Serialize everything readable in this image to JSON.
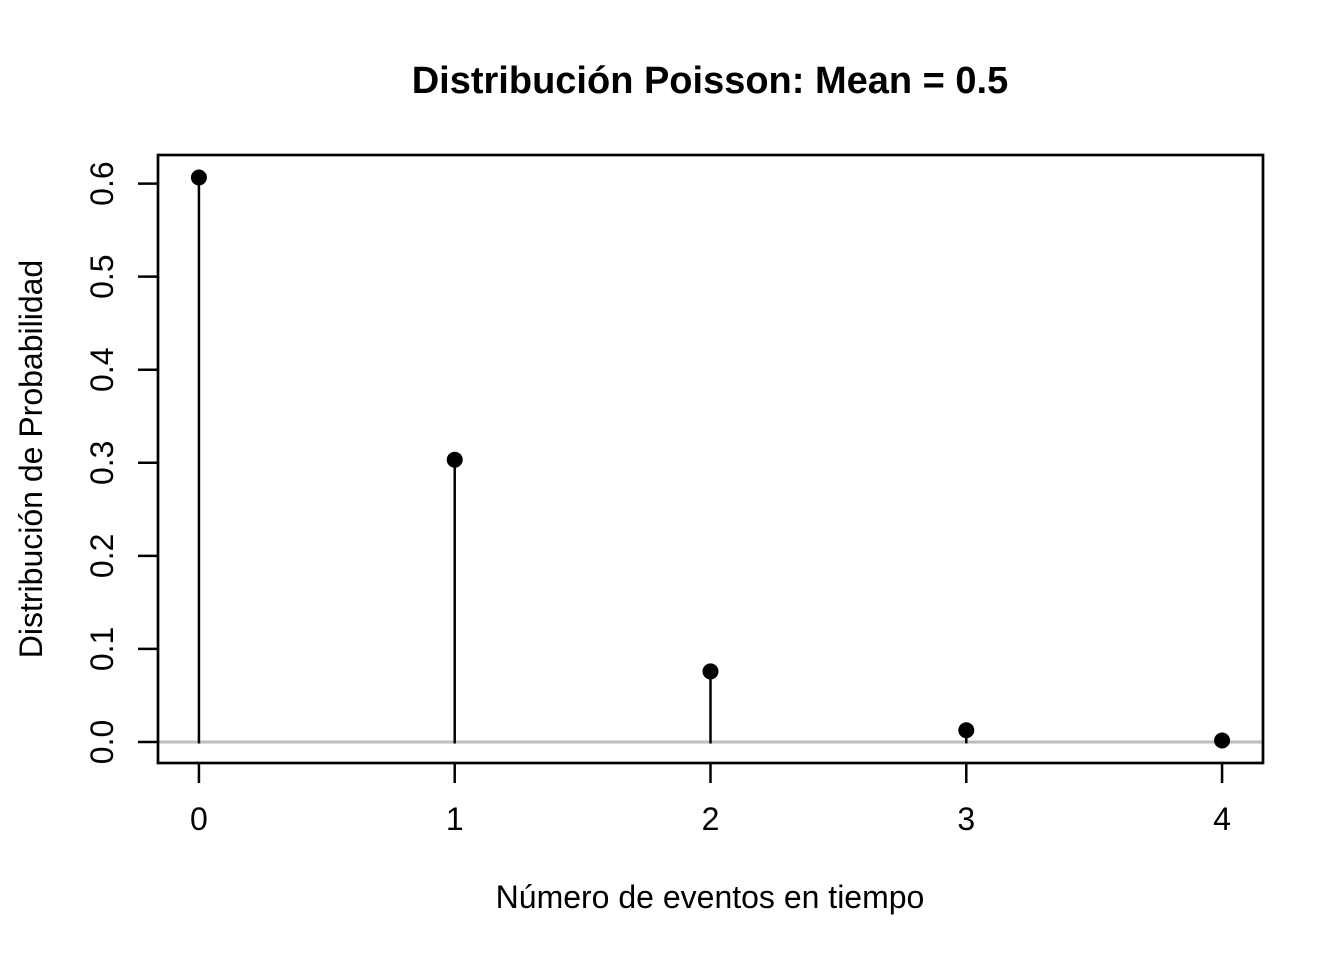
{
  "chart_data": {
    "type": "scatter",
    "style": "stem-plot (R type='h' vertical lines with filled points pch=19)",
    "title": "Distribución Poisson: Mean = 0.5",
    "xlabel": "Número de eventos en tiempo",
    "ylabel": "Distribución de Probabilidad",
    "x": [
      0,
      1,
      2,
      3,
      4
    ],
    "y": [
      0.6065,
      0.3033,
      0.0758,
      0.0126,
      0.0016
    ],
    "xticks": [
      "0",
      "1",
      "2",
      "3",
      "4"
    ],
    "yticks": [
      "0.0",
      "0.1",
      "0.2",
      "0.3",
      "0.4",
      "0.5",
      "0.6"
    ],
    "xlim": [
      -0.16,
      4.16
    ],
    "ylim": [
      -0.0226,
      0.6307
    ],
    "grid": false,
    "legend": false,
    "zero_line": {
      "y": 0,
      "color": "#bebebe"
    },
    "point_color": "#000000",
    "stem_color": "#000000",
    "frame_color": "#000000",
    "background_color": "#ffffff"
  }
}
